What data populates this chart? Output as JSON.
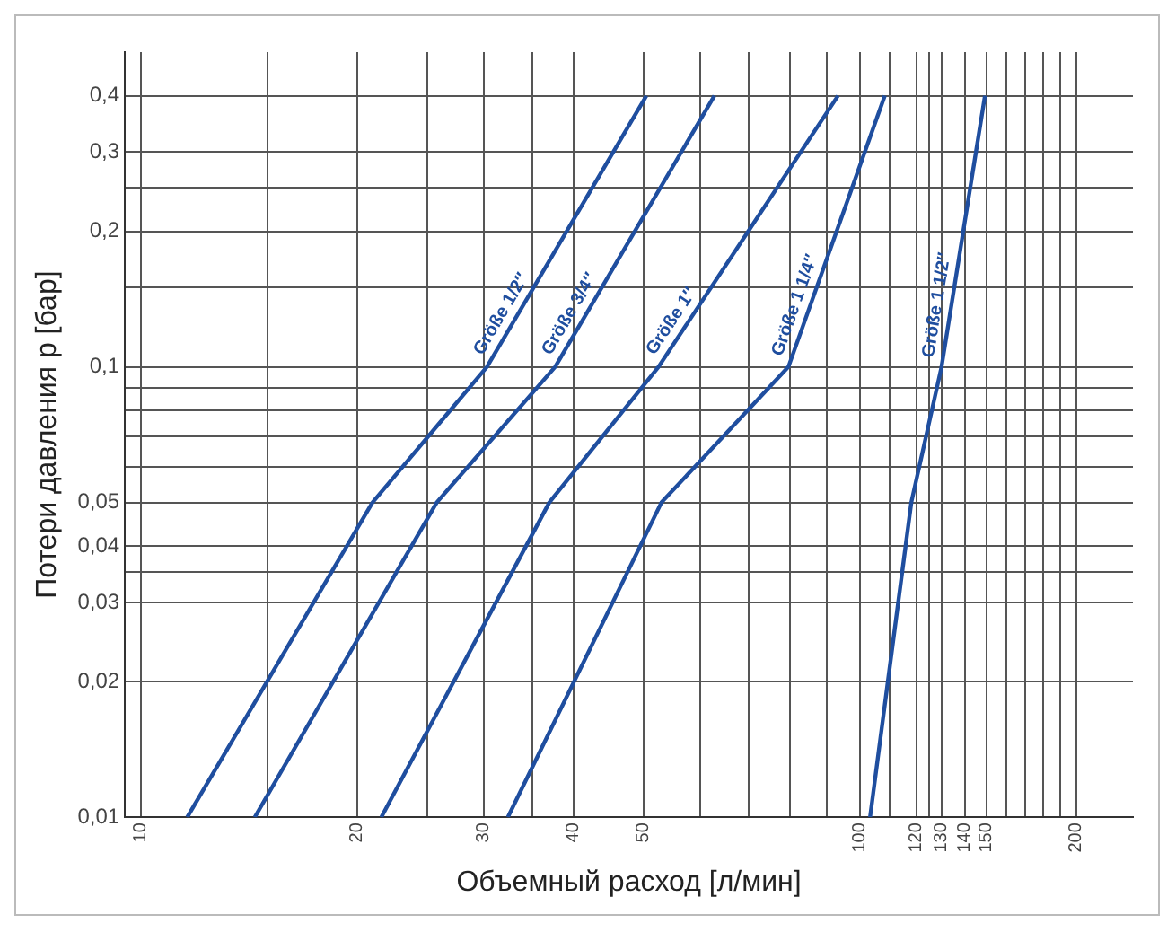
{
  "chart_data": {
    "type": "line",
    "xlabel": "Объемный расход [л/мин]",
    "ylabel": "Потери давления p [бар]",
    "log": "xy",
    "grid": true,
    "legend": false,
    "marker": "none",
    "line_style": "solid",
    "xlim": [
      9.5,
      240
    ],
    "ylim": [
      0.01,
      0.5
    ],
    "xticks": [
      10,
      {
        "value": 15,
        "label": null
      },
      20,
      {
        "value": 25,
        "label": null
      },
      30,
      {
        "value": 35,
        "label": null
      },
      40,
      50,
      {
        "value": 60,
        "label": null
      },
      {
        "value": 70,
        "label": null
      },
      {
        "value": 80,
        "label": null
      },
      {
        "value": 90,
        "label": null
      },
      100,
      {
        "value": 110,
        "label": null
      },
      120,
      {
        "value": 125,
        "label": null
      },
      130,
      140,
      150,
      {
        "value": 160,
        "label": null
      },
      {
        "value": 170,
        "label": null
      },
      {
        "value": 180,
        "label": null
      },
      {
        "value": 190,
        "label": null
      },
      200
    ],
    "yticks": [
      {
        "value": 0.01,
        "label": "0,01"
      },
      {
        "value": 0.02,
        "label": "0,02"
      },
      {
        "value": 0.03,
        "label": "0,03"
      },
      {
        "value": 0.035,
        "label": null
      },
      {
        "value": 0.04,
        "label": "0,04"
      },
      {
        "value": 0.05,
        "label": "0,05"
      },
      {
        "value": 0.06,
        "label": null
      },
      {
        "value": 0.07,
        "label": null
      },
      {
        "value": 0.08,
        "label": null
      },
      {
        "value": 0.09,
        "label": null
      },
      {
        "value": 0.1,
        "label": "0,1"
      },
      {
        "value": 0.15,
        "label": null
      },
      {
        "value": 0.2,
        "label": "0,2"
      },
      {
        "value": 0.25,
        "label": null
      },
      {
        "value": 0.3,
        "label": "0,3"
      },
      {
        "value": 0.4,
        "label": "0,4"
      }
    ],
    "series": [
      {
        "name": "Größe 1/2″",
        "color": "#1f4e9f",
        "x": [
          11.6,
          21,
          30.3,
          50.5
        ],
        "values": [
          0.01,
          0.05,
          0.1,
          0.4
        ]
      },
      {
        "name": "Größe 3/4″",
        "color": "#1f4e9f",
        "x": [
          14.4,
          25.8,
          37.7,
          62.8
        ],
        "values": [
          0.01,
          0.05,
          0.1,
          0.4
        ]
      },
      {
        "name": "Größe 1″",
        "color": "#1f4e9f",
        "x": [
          21.6,
          37,
          52.5,
          93.3
        ],
        "values": [
          0.01,
          0.05,
          0.1,
          0.4
        ]
      },
      {
        "name": "Größe 1 1/4″",
        "color": "#1f4e9f",
        "x": [
          32.4,
          53,
          79.6,
          108.4
        ],
        "values": [
          0.01,
          0.05,
          0.1,
          0.4
        ]
      },
      {
        "name": "Größe 1 1/2″",
        "color": "#1f4e9f",
        "x": [
          103.4,
          118,
          130,
          149.4
        ],
        "values": [
          0.01,
          0.05,
          0.1,
          0.4
        ]
      }
    ]
  }
}
